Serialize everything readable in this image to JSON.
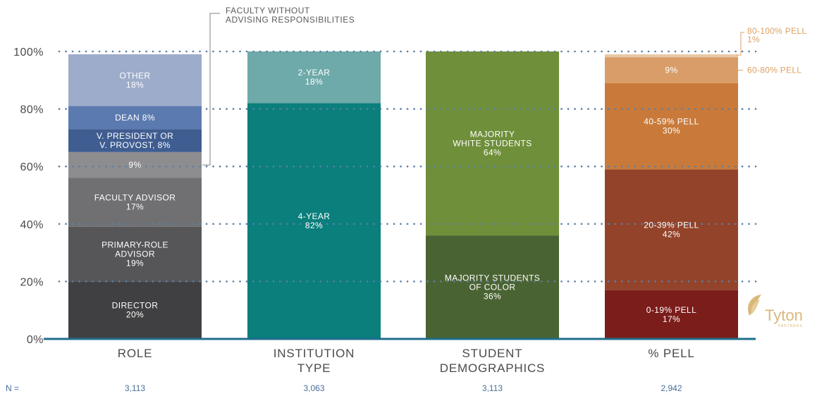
{
  "chart_data": {
    "type": "bar",
    "stacked": true,
    "normalized": true,
    "ylim": [
      0,
      100
    ],
    "yticks": [
      "0%",
      "20%",
      "40%",
      "60%",
      "80%",
      "100%"
    ],
    "grid": "dotted horizontal",
    "categories": [
      [
        "ROLE"
      ],
      [
        "INSTITUTION",
        "TYPE"
      ],
      [
        "STUDENT",
        "DEMOGRAPHICS"
      ],
      [
        "% PELL"
      ]
    ],
    "n_label": "N =",
    "n_values": [
      "3,113",
      "3,063",
      "3,113",
      "2,942"
    ],
    "stacks": [
      {
        "category": "ROLE",
        "segments": [
          {
            "label": [
              "DIRECTOR",
              "20%"
            ],
            "value": 20,
            "color": "#404042"
          },
          {
            "label": [
              "PRIMARY-ROLE",
              "ADVISOR",
              "19%"
            ],
            "value": 19,
            "color": "#565658"
          },
          {
            "label": [
              "FACULTY ADVISOR",
              "17%"
            ],
            "value": 17,
            "color": "#707072"
          },
          {
            "label": [
              "9%"
            ],
            "value": 9,
            "color": "#8d8d8f"
          },
          {
            "label": [
              "V. PRESIDENT OR",
              "V. PROVOST, 8%"
            ],
            "value": 8,
            "color": "#3f5d91"
          },
          {
            "label": [
              "DEAN 8%"
            ],
            "value": 8,
            "color": "#5b7ab0"
          },
          {
            "label": [
              "OTHER",
              "18%"
            ],
            "value": 18,
            "color": "#9daccb"
          }
        ]
      },
      {
        "category": "INSTITUTION TYPE",
        "segments": [
          {
            "label": [
              "4-YEAR",
              "82%"
            ],
            "value": 82,
            "color": "#0a7f7c"
          },
          {
            "label": [
              "2-YEAR",
              "18%"
            ],
            "value": 18,
            "color": "#6eaaa9"
          }
        ]
      },
      {
        "category": "STUDENT DEMOGRAPHICS",
        "segments": [
          {
            "label": [
              "MAJORITY STUDENTS",
              "OF COLOR",
              "36%"
            ],
            "value": 36,
            "color": "#4a6332"
          },
          {
            "label": [
              "MAJORITY",
              "WHITE STUDENTS",
              "64%"
            ],
            "value": 64,
            "color": "#6f8f3a"
          }
        ]
      },
      {
        "category": "% PELL",
        "segments": [
          {
            "label": [
              "0-19% PELL",
              "17%"
            ],
            "value": 17,
            "color": "#7b1d1b"
          },
          {
            "label": [
              "20-39% PELL",
              "42%"
            ],
            "value": 42,
            "color": "#93432a"
          },
          {
            "label": [
              "40-59% PELL",
              "30%"
            ],
            "value": 30,
            "color": "#c97a3a"
          },
          {
            "label": [
              "9%"
            ],
            "value": 9,
            "color": "#d89d68"
          },
          {
            "label": [],
            "value": 1,
            "color": "#e8c9a4"
          }
        ]
      }
    ],
    "annotations": [
      {
        "text": [
          "FACULTY WITHOUT",
          "ADVISING RESPONSIBILITIES"
        ],
        "points_to": "ROLE 9%"
      },
      {
        "text": [
          "80-100% PELL",
          "1%"
        ],
        "points_to": "% PELL 1%"
      },
      {
        "text": [
          "60-80% PELL"
        ],
        "points_to": "% PELL 9%"
      }
    ]
  },
  "colors": {
    "axis": "#1f6e8c",
    "grid": "#5c7fa3",
    "tick_text": "#4a4a4a",
    "n_text": "#4a6e99",
    "annotation_orange": "#e0a060",
    "logo": "#d9b87c"
  },
  "logo": {
    "name": "Tyton",
    "sub": "PARTNERS"
  }
}
